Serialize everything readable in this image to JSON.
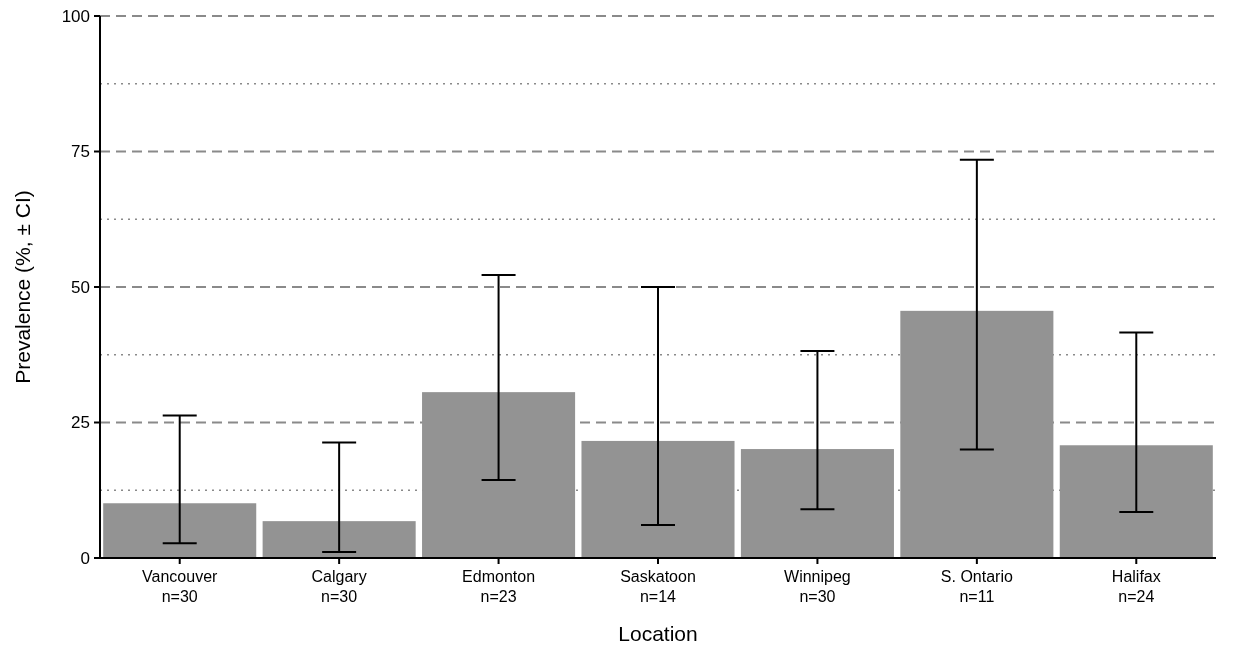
{
  "chart_data": {
    "type": "bar",
    "xlabel": "Location",
    "ylabel": "Prevalence (%, ± CI)",
    "categories": [
      "Vancouver\nn=30",
      "Calgary\nn=30",
      "Edmonton\nn=23",
      "Saskatoon\nn=14",
      "Winnipeg\nn=30",
      "S. Ontario\nn=11",
      "Halifax\nn=24"
    ],
    "values": [
      10.1,
      6.8,
      30.6,
      21.6,
      20.1,
      45.6,
      20.8
    ],
    "errors": [
      [
        2.7,
        26.3
      ],
      [
        1.1,
        21.3
      ],
      [
        14.4,
        52.2
      ],
      [
        6.1,
        50
      ],
      [
        9,
        38.2
      ],
      [
        20,
        73.5
      ],
      [
        8.5,
        41.6
      ]
    ],
    "color": "#939393",
    "ylim": [
      0,
      100
    ],
    "yticks": [
      0,
      {
        "value": 12.5,
        "label": null
      },
      25,
      {
        "value": 37.5,
        "label": null
      },
      50,
      {
        "value": 62.5,
        "label": null
      },
      75,
      {
        "value": 87.5,
        "label": null
      },
      100
    ],
    "grid": "y"
  }
}
